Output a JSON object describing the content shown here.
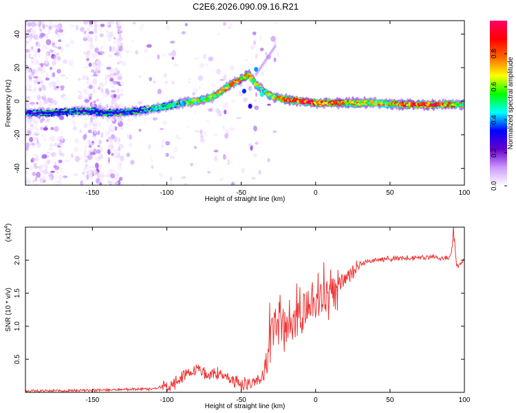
{
  "figure": {
    "title": "C2E6.2026.090.09.16.R21"
  },
  "chart_data": [
    {
      "type": "heatmap",
      "name": "spectrogram",
      "xlabel": "Height of straight line (km)",
      "ylabel": "Frequency (Hz)",
      "xlim": [
        -195,
        100
      ],
      "ylim": [
        -50,
        48
      ],
      "xticks": [
        -150,
        -100,
        -50,
        0,
        50,
        100
      ],
      "yticks": [
        -40,
        -20,
        0,
        20,
        40
      ],
      "colorbar": {
        "label": "Normalized spectral amplitude",
        "range": [
          0,
          1
        ],
        "ticks": [
          0.0,
          0.2,
          0.4,
          0.6,
          0.8
        ],
        "tick_labels": [
          "0.0",
          "0.2",
          "0.4",
          "0.6",
          "0.8"
        ],
        "colormap": [
          "#ffffff",
          "#cc99ff",
          "#6600cc",
          "#0000ff",
          "#00ffff",
          "#00ff00",
          "#ffff00",
          "#ff6600",
          "#ff0000",
          "#ff0066"
        ]
      },
      "ridge": {
        "x": [
          -195,
          -180,
          -160,
          -150,
          -140,
          -120,
          -100,
          -90,
          -80,
          -70,
          -60,
          -55,
          -50,
          -45,
          -40,
          -35,
          -30,
          -25,
          -20,
          -10,
          0,
          10,
          20,
          40,
          60,
          80,
          100
        ],
        "y": [
          -7,
          -7,
          -6,
          -6,
          -7,
          -6,
          -3,
          -1,
          0,
          2,
          8,
          11,
          13,
          16,
          10,
          6,
          3,
          2,
          1,
          0,
          -1,
          -1,
          -1,
          -1,
          -2,
          -2,
          -2
        ],
        "amplitude": [
          0.25,
          0.3,
          0.35,
          0.3,
          0.3,
          0.35,
          0.45,
          0.5,
          0.55,
          0.6,
          0.65,
          0.75,
          0.8,
          0.7,
          0.6,
          0.55,
          0.6,
          0.7,
          0.8,
          0.9,
          0.9,
          0.8,
          0.7,
          0.6,
          0.8,
          0.9,
          0.5
        ]
      }
    },
    {
      "type": "line",
      "name": "snr",
      "xlabel": "Height of straight line (km)",
      "ylabel": "SNR (10 * v/v)",
      "exponent_label": "(x10",
      "exponent_power": "4",
      "exponent_close": ")",
      "xlim": [
        -195,
        100
      ],
      "ylim": [
        0,
        2.5
      ],
      "xticks": [
        -150,
        -100,
        -50,
        0,
        50,
        100
      ],
      "yticks": [
        0.5,
        1.0,
        1.5,
        2.0
      ],
      "ytick_labels": [
        "0.5",
        "1.0",
        "1.5",
        "2.0"
      ],
      "color": "#ee3333",
      "x": [
        -195,
        -150,
        -110,
        -100,
        -95,
        -90,
        -85,
        -80,
        -75,
        -70,
        -65,
        -60,
        -55,
        -50,
        -45,
        -40,
        -35,
        -32,
        -30,
        -25,
        -20,
        -15,
        -10,
        -5,
        0,
        5,
        10,
        15,
        20,
        25,
        30,
        40,
        50,
        60,
        70,
        80,
        90,
        93,
        95,
        100
      ],
      "y": [
        0.02,
        0.03,
        0.05,
        0.08,
        0.12,
        0.22,
        0.3,
        0.35,
        0.3,
        0.25,
        0.3,
        0.22,
        0.15,
        0.13,
        0.15,
        0.17,
        0.25,
        0.5,
        0.8,
        1.1,
        1.0,
        1.15,
        1.2,
        1.3,
        1.35,
        1.4,
        1.5,
        1.6,
        1.7,
        1.85,
        1.95,
        2.0,
        2.02,
        2.03,
        2.04,
        2.05,
        2.03,
        2.3,
        1.9,
        2.0
      ]
    }
  ]
}
